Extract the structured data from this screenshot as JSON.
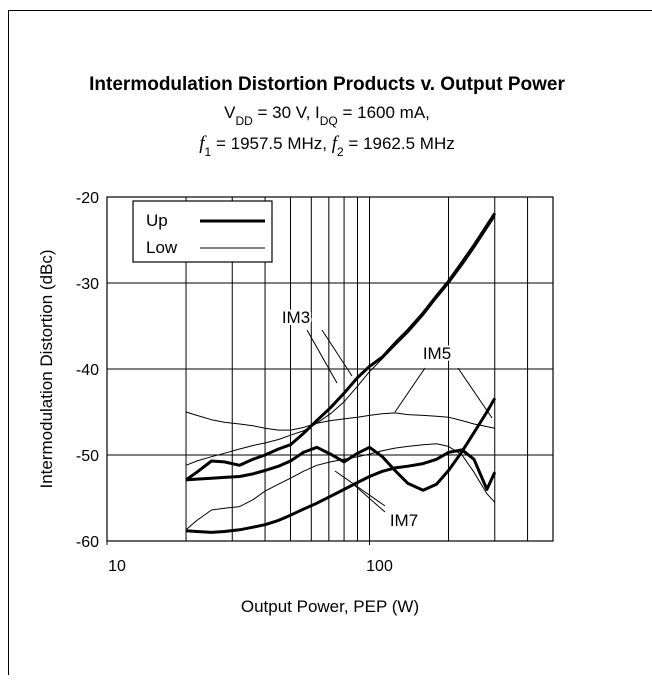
{
  "chart_data": {
    "type": "line",
    "title": "Intermodulation Distortion Products v. Output Power",
    "subtitle": [
      [
        {
          "text": "V"
        },
        {
          "sub": "DD"
        },
        {
          "text": " = 30 V, I"
        },
        {
          "sub": "DQ"
        },
        {
          "text": " = 1600 mA,"
        }
      ],
      [
        {
          "italic": "f"
        },
        {
          "sub": "1"
        },
        {
          "text": " = 1957.5 MHz, "
        },
        {
          "italic": "f"
        },
        {
          "sub": "2"
        },
        {
          "text": " = 1962.5 MHz"
        }
      ]
    ],
    "x_label": "Output Power, PEP (W)",
    "y_label": "Intermodulation Distortion (dBc)",
    "x_scale": "log",
    "xlim": [
      10,
      500
    ],
    "xticks": [
      10,
      100
    ],
    "x_grid_lines": [
      20,
      30,
      40,
      50,
      60,
      70,
      80,
      90,
      100,
      200,
      300,
      400
    ],
    "ylim": [
      -60,
      -20
    ],
    "yticks": [
      -60,
      -50,
      -40,
      -30,
      -20
    ],
    "grid": true,
    "legend": "upper left",
    "x": [
      20,
      22,
      25,
      28,
      32,
      36,
      40,
      45,
      50,
      56,
      63,
      71,
      80,
      90,
      100,
      112,
      125,
      140,
      160,
      180,
      200,
      225,
      250,
      280,
      300
    ],
    "series": [
      {
        "name": "Up",
        "color": "#000000",
        "linewidth": 3,
        "values": [
          -52.9,
          -52,
          -50.7,
          -50.8,
          -51.2,
          -50.5,
          -50,
          -49.3,
          -48.8,
          -47.5,
          -46,
          -44.5,
          -42.8,
          -41,
          -39.7,
          -38.6,
          -37,
          -35.5,
          -33.5,
          -31.5,
          -29.8,
          -27.6,
          -25.6,
          -23.3,
          -21.9
        ]
      },
      {
        "name": "Low",
        "color": "#000000",
        "linewidth": 1,
        "values": [
          -51.2,
          -50.7,
          -50.2,
          -49.8,
          -49.3,
          -48.9,
          -48.6,
          -48.2,
          -47.7,
          -47.2,
          -46.3,
          -45.2,
          -43.8,
          -42,
          -40.3,
          -38.8,
          -37.3,
          -35.8,
          -33.8,
          -31.8,
          -30.1,
          -28,
          -26,
          -23.7,
          -22.3
        ]
      },
      {
        "name": "Up",
        "color": "#000000",
        "linewidth": 3,
        "values": [
          -52.9,
          -52.8,
          -52.7,
          -52.6,
          -52.5,
          -52.2,
          -51.8,
          -51.3,
          -50.7,
          -49.7,
          -49.1,
          -49.9,
          -50.8,
          -49.8,
          -49.1,
          -50.2,
          -51.8,
          -53.3,
          -54.1,
          -53.4,
          -51.8,
          -49.6,
          -47.4,
          -45,
          -43.4
        ]
      },
      {
        "name": "Low",
        "color": "#000000",
        "linewidth": 1,
        "values": [
          -45,
          -45.4,
          -45.9,
          -46.2,
          -46.4,
          -46.6,
          -46.9,
          -47.1,
          -47.1,
          -46.8,
          -46.3,
          -46,
          -45.8,
          -45.6,
          -45.4,
          -45.2,
          -45.1,
          -45.3,
          -45.4,
          -45.5,
          -45.6,
          -46,
          -46.4,
          -46.7,
          -46.9
        ]
      },
      {
        "name": "Up",
        "color": "#000000",
        "linewidth": 3,
        "values": [
          -58.8,
          -58.9,
          -59,
          -58.9,
          -58.7,
          -58.4,
          -58.1,
          -57.6,
          -57,
          -56.3,
          -55.6,
          -54.8,
          -54,
          -53.2,
          -52.5,
          -51.9,
          -51.5,
          -51.3,
          -51,
          -50.5,
          -49.7,
          -49.4,
          -50.5,
          -54,
          -52
        ]
      },
      {
        "name": "Low",
        "color": "#000000",
        "linewidth": 1,
        "values": [
          -58.7,
          -57.6,
          -56.4,
          -56.2,
          -56,
          -55.2,
          -54.2,
          -53.4,
          -52.7,
          -51.9,
          -51.2,
          -50.8,
          -50.5,
          -50.2,
          -49.9,
          -49.5,
          -49.2,
          -49,
          -48.8,
          -48.7,
          -49,
          -50,
          -52,
          -54.5,
          -55.5
        ]
      }
    ],
    "annotations": [
      {
        "text": "IM3"
      },
      {
        "text": "IM5"
      },
      {
        "text": "IM7"
      }
    ]
  }
}
